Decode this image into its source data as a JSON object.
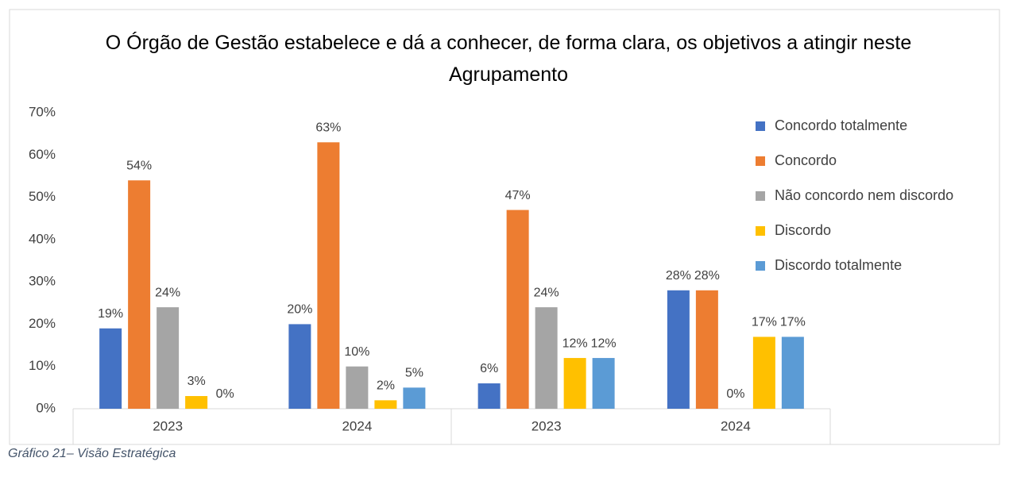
{
  "chart_data": {
    "type": "bar",
    "title": "O Órgão de Gestão estabelece e dá a conhecer, de forma clara, os objetivos a atingir neste Agrupamento",
    "categories": [
      "2023",
      "2024",
      "2023",
      "2024"
    ],
    "series": [
      {
        "name": "Concordo totalmente",
        "color": "#4472c4",
        "values": [
          19,
          20,
          6,
          28
        ],
        "value_labels": [
          "19%",
          "20%",
          "6%",
          "28%"
        ]
      },
      {
        "name": "Concordo",
        "color": "#ed7d31",
        "values": [
          54,
          63,
          47,
          28
        ],
        "value_labels": [
          "54%",
          "63%",
          "47%",
          "28%"
        ]
      },
      {
        "name": "Não concordo nem discordo",
        "color": "#a5a5a5",
        "values": [
          24,
          10,
          24,
          0
        ],
        "value_labels": [
          "24%",
          "10%",
          "24%",
          "0%"
        ]
      },
      {
        "name": "Discordo",
        "color": "#ffc000",
        "values": [
          3,
          2,
          12,
          17
        ],
        "value_labels": [
          "3%",
          "2%",
          "12%",
          "17%"
        ]
      },
      {
        "name": "Discordo totalmente",
        "color": "#5b9bd5",
        "values": [
          0,
          5,
          12,
          17
        ],
        "value_labels": [
          "0%",
          "5%",
          "12%",
          "17%"
        ]
      }
    ],
    "ylim": [
      0,
      70
    ],
    "yticks": [
      {
        "value": 0,
        "label": "0%"
      },
      {
        "value": 10,
        "label": "10%"
      },
      {
        "value": 20,
        "label": "20%"
      },
      {
        "value": 30,
        "label": "30%"
      },
      {
        "value": 40,
        "label": "40%"
      },
      {
        "value": 50,
        "label": "50%"
      },
      {
        "value": 60,
        "label": "60%"
      },
      {
        "value": 70,
        "label": "70%"
      }
    ],
    "grid": false,
    "legend": "right"
  },
  "caption": "Gráfico 21– Visão Estratégica"
}
